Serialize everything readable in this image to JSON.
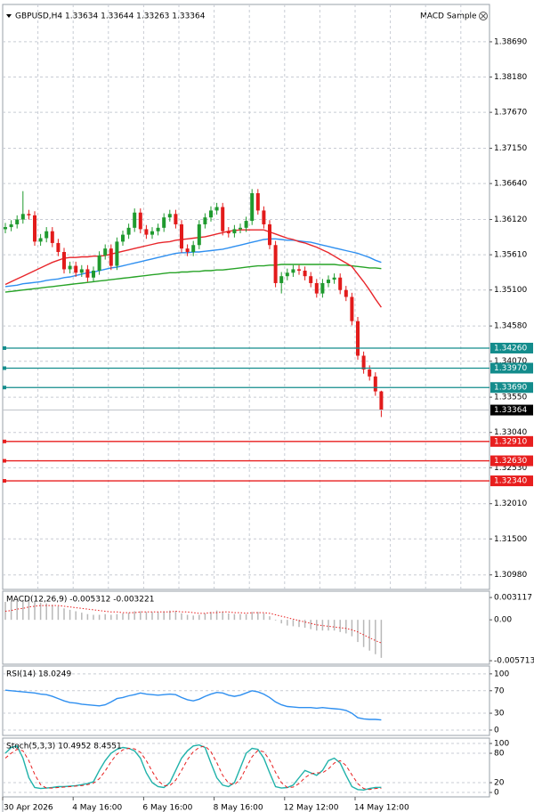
{
  "header": {
    "expert": "MACD Sample"
  },
  "chart_data": [
    {
      "type": "candlestick",
      "title": "GBPUSD,H4  1.33634 1.33644 1.33263 1.33364",
      "up_color": "#1f9a2e",
      "down_color": "#e21b1b",
      "grid": true,
      "ylim": [
        1.3077,
        1.3923
      ],
      "yticks": [
        {
          "value": 1.3869,
          "label": "1.38690"
        },
        {
          "value": 1.3818,
          "label": "1.38180"
        },
        {
          "value": 1.3767,
          "label": "1.37670"
        },
        {
          "value": 1.3715,
          "label": "1.37150"
        },
        {
          "value": 1.3664,
          "label": "1.36640"
        },
        {
          "value": 1.3612,
          "label": "1.36120"
        },
        {
          "value": 1.3561,
          "label": "1.35610"
        },
        {
          "value": 1.351,
          "label": "1.35100"
        },
        {
          "value": 1.3458,
          "label": "1.34580"
        },
        {
          "value": 1.3407,
          "label": "1.34070"
        },
        {
          "value": 1.3355,
          "label": "1.33550"
        },
        {
          "value": 1.3304,
          "label": "1.33040"
        },
        {
          "value": 1.3253,
          "label": "1.32530"
        },
        {
          "value": 1.3201,
          "label": "1.32010"
        },
        {
          "value": 1.315,
          "label": "1.31500"
        },
        {
          "value": 1.3098,
          "label": "1.30980"
        }
      ],
      "open": [
        1.3598,
        1.3601,
        1.3605,
        1.3612,
        1.362,
        1.3618,
        1.358,
        1.3585,
        1.3595,
        1.3578,
        1.3565,
        1.354,
        1.3545,
        1.3535,
        1.354,
        1.3528,
        1.3538,
        1.356,
        1.357,
        1.3545,
        1.358,
        1.359,
        1.36,
        1.3622,
        1.3598,
        1.359,
        1.3595,
        1.36,
        1.3615,
        1.362,
        1.3605,
        1.357,
        1.3565,
        1.3575,
        1.3605,
        1.3615,
        1.3625,
        1.363,
        1.3595,
        1.3592,
        1.3598,
        1.36,
        1.361,
        1.365,
        1.3625,
        1.3605,
        1.3575,
        1.352,
        1.353,
        1.3535,
        1.354,
        1.3538,
        1.353,
        1.352,
        1.3505,
        1.352,
        1.3525,
        1.3528,
        1.351,
        1.35,
        1.3465,
        1.3415,
        1.3395,
        1.3385,
        1.33634
      ],
      "high": [
        1.3607,
        1.3611,
        1.3618,
        1.3653,
        1.3626,
        1.3624,
        1.3591,
        1.3601,
        1.3601,
        1.3584,
        1.3571,
        1.3551,
        1.3551,
        1.3546,
        1.3546,
        1.3544,
        1.3566,
        1.3576,
        1.3576,
        1.3586,
        1.3596,
        1.3606,
        1.3628,
        1.3628,
        1.3604,
        1.3601,
        1.3606,
        1.3621,
        1.3626,
        1.3626,
        1.3611,
        1.3576,
        1.3581,
        1.3611,
        1.3621,
        1.3631,
        1.3636,
        1.3636,
        1.3601,
        1.3604,
        1.3606,
        1.3616,
        1.3656,
        1.3656,
        1.3631,
        1.3611,
        1.3581,
        1.3536,
        1.3541,
        1.3546,
        1.3546,
        1.3544,
        1.3536,
        1.3526,
        1.3526,
        1.3531,
        1.3534,
        1.3534,
        1.3516,
        1.3506,
        1.3471,
        1.3421,
        1.3401,
        1.3391,
        1.33644
      ],
      "low": [
        1.3592,
        1.3595,
        1.3599,
        1.3606,
        1.3612,
        1.3574,
        1.3574,
        1.3579,
        1.3572,
        1.3559,
        1.3534,
        1.3534,
        1.3529,
        1.3529,
        1.3522,
        1.3522,
        1.3532,
        1.3554,
        1.3539,
        1.3539,
        1.3574,
        1.3584,
        1.3594,
        1.3592,
        1.3584,
        1.3584,
        1.3589,
        1.3594,
        1.3609,
        1.3599,
        1.3564,
        1.3559,
        1.3559,
        1.3569,
        1.3599,
        1.3609,
        1.3619,
        1.3589,
        1.3586,
        1.3586,
        1.3592,
        1.3594,
        1.3604,
        1.3619,
        1.3599,
        1.3569,
        1.3514,
        1.3505,
        1.3524,
        1.3529,
        1.3532,
        1.3524,
        1.3514,
        1.3499,
        1.3499,
        1.3514,
        1.3519,
        1.3504,
        1.3494,
        1.3459,
        1.3409,
        1.3389,
        1.3379,
        1.3357,
        1.33263
      ],
      "close": [
        1.3601,
        1.3605,
        1.3612,
        1.362,
        1.3618,
        1.358,
        1.3585,
        1.3595,
        1.3578,
        1.3565,
        1.354,
        1.3545,
        1.3535,
        1.354,
        1.3528,
        1.3538,
        1.356,
        1.357,
        1.3545,
        1.358,
        1.359,
        1.36,
        1.3622,
        1.3598,
        1.359,
        1.3595,
        1.36,
        1.3615,
        1.362,
        1.3605,
        1.357,
        1.3565,
        1.3575,
        1.3605,
        1.3615,
        1.3625,
        1.363,
        1.3595,
        1.3592,
        1.3598,
        1.36,
        1.361,
        1.365,
        1.3625,
        1.3605,
        1.3575,
        1.352,
        1.353,
        1.3535,
        1.354,
        1.3538,
        1.353,
        1.352,
        1.3505,
        1.352,
        1.3525,
        1.3528,
        1.351,
        1.35,
        1.3465,
        1.3415,
        1.3395,
        1.3385,
        1.33634,
        1.33364
      ],
      "series": [
        {
          "color": "#27a327",
          "values": [
            1.3507,
            1.3508,
            1.3509,
            1.351,
            1.3511,
            1.3512,
            1.3513,
            1.3514,
            1.3515,
            1.3516,
            1.3517,
            1.3518,
            1.3519,
            1.352,
            1.3521,
            1.3522,
            1.3523,
            1.3524,
            1.3525,
            1.3526,
            1.3527,
            1.3528,
            1.3529,
            1.353,
            1.3531,
            1.3532,
            1.3533,
            1.3534,
            1.3535,
            1.3535,
            1.3536,
            1.3536,
            1.3537,
            1.3537,
            1.3538,
            1.3538,
            1.3539,
            1.3539,
            1.354,
            1.3541,
            1.3542,
            1.3543,
            1.3544,
            1.3545,
            1.3545,
            1.3546,
            1.3546,
            1.3547,
            1.3547,
            1.3547,
            1.3547,
            1.3547,
            1.3547,
            1.3547,
            1.3547,
            1.3547,
            1.3547,
            1.3546,
            1.3546,
            1.3545,
            1.3544,
            1.3543,
            1.3542,
            1.3542,
            1.3541
          ]
        },
        {
          "color": "#2e8ff0",
          "values": [
            1.3515,
            1.3516,
            1.3517,
            1.3519,
            1.352,
            1.3521,
            1.3522,
            1.3524,
            1.3525,
            1.3526,
            1.3528,
            1.3529,
            1.3531,
            1.3533,
            1.3535,
            1.3536,
            1.3538,
            1.354,
            1.3542,
            1.3543,
            1.3545,
            1.3547,
            1.3549,
            1.3551,
            1.3553,
            1.3555,
            1.3557,
            1.3559,
            1.3561,
            1.3563,
            1.3564,
            1.3564,
            1.3565,
            1.3565,
            1.3566,
            1.3567,
            1.3568,
            1.3569,
            1.3571,
            1.3573,
            1.3575,
            1.3577,
            1.3579,
            1.3581,
            1.3583,
            1.3584,
            1.3584,
            1.3583,
            1.3582,
            1.3582,
            1.3581,
            1.358,
            1.3579,
            1.3577,
            1.3575,
            1.3573,
            1.3571,
            1.3569,
            1.3567,
            1.3565,
            1.3563,
            1.356,
            1.3557,
            1.3553,
            1.355
          ]
        },
        {
          "color": "#e8262b",
          "values": [
            1.3518,
            1.3522,
            1.3526,
            1.353,
            1.3534,
            1.3538,
            1.3542,
            1.3546,
            1.355,
            1.3553,
            1.3556,
            1.3557,
            1.3557,
            1.3558,
            1.3558,
            1.3559,
            1.3559,
            1.356,
            1.3562,
            1.3564,
            1.3566,
            1.3568,
            1.357,
            1.3572,
            1.3574,
            1.3576,
            1.3578,
            1.3579,
            1.358,
            1.3582,
            1.3583,
            1.3584,
            1.3585,
            1.3586,
            1.3587,
            1.3589,
            1.3591,
            1.3593,
            1.3595,
            1.3596,
            1.3597,
            1.3597,
            1.3597,
            1.3597,
            1.3597,
            1.3594,
            1.3591,
            1.3588,
            1.3585,
            1.3583,
            1.358,
            1.3578,
            1.3575,
            1.3572,
            1.3568,
            1.3564,
            1.3559,
            1.3554,
            1.3549,
            1.3544,
            1.3533,
            1.3522,
            1.351,
            1.3497,
            1.3485
          ]
        }
      ],
      "levels": {
        "values": [
          1.3426,
          1.3397,
          1.3369,
          1.3291,
          1.3263,
          1.3234
        ],
        "value_labels": [
          "1.34260",
          "1.33970",
          "1.33690",
          "1.32910",
          "1.32630",
          "1.32340"
        ],
        "colors": [
          "#138c8c",
          "#138c8c",
          "#138c8c",
          "#e81e1e",
          "#e81e1e",
          "#e81e1e"
        ]
      },
      "current_price": {
        "value": 1.33364,
        "value_label": "1.33364",
        "color": "#000000"
      }
    },
    {
      "type": "macd",
      "title": "MACD(12,26,9) -0.005312 -0.003221",
      "grid": false,
      "ylim": [
        -0.0062,
        0.004
      ],
      "yticks": [
        0.003117,
        {
          "value": 0,
          "label": "0.00"
        },
        -0.005713
      ],
      "color": "#b8b8b8",
      "values": [
        0.0025,
        0.0026,
        0.0027,
        0.0028,
        0.0028,
        0.0026,
        0.0024,
        0.0023,
        0.0021,
        0.0019,
        0.0016,
        0.0014,
        0.0012,
        0.001,
        0.0008,
        0.0007,
        0.0007,
        0.0008,
        0.0007,
        0.0008,
        0.0009,
        0.001,
        0.0012,
        0.0012,
        0.0011,
        0.0011,
        0.0011,
        0.0012,
        0.0013,
        0.0012,
        0.0009,
        0.0007,
        0.0006,
        0.0007,
        0.0009,
        0.0011,
        0.0013,
        0.0011,
        0.0009,
        0.0008,
        0.0008,
        0.0008,
        0.0011,
        0.0011,
        0.0009,
        0.0005,
        -0.0001,
        -0.0005,
        -0.0008,
        -0.0009,
        -0.001,
        -0.0011,
        -0.0013,
        -0.0015,
        -0.0015,
        -0.0015,
        -0.0015,
        -0.0017,
        -0.0019,
        -0.0023,
        -0.0031,
        -0.0038,
        -0.0043,
        -0.0048,
        -0.005312
      ],
      "series": [
        {
          "color": "#e81e1e",
          "style": "dotted",
          "values": [
            0.0012,
            0.0013,
            0.0015,
            0.0016,
            0.0018,
            0.0019,
            0.002,
            0.002,
            0.002,
            0.002,
            0.0019,
            0.0018,
            0.0017,
            0.0016,
            0.0015,
            0.0014,
            0.0013,
            0.0012,
            0.0011,
            0.0011,
            0.001,
            0.001,
            0.001,
            0.0011,
            0.0011,
            0.0011,
            0.0011,
            0.0011,
            0.0011,
            0.0012,
            0.0011,
            0.0011,
            0.001,
            0.0009,
            0.0009,
            0.001,
            0.001,
            0.0011,
            0.0011,
            0.001,
            0.001,
            0.0009,
            0.001,
            0.001,
            0.001,
            0.0009,
            0.0007,
            0.0005,
            0.0003,
            0.0001,
            -0.0001,
            -0.0003,
            -0.0005,
            -0.0007,
            -0.0008,
            -0.0009,
            -0.001,
            -0.0011,
            -0.0012,
            -0.0014,
            -0.0017,
            -0.0021,
            -0.0025,
            -0.0029,
            -0.003221
          ]
        }
      ]
    },
    {
      "type": "line",
      "title": "RSI(14) 18.0249",
      "grid": true,
      "ylim": [
        -9.5,
        114
      ],
      "yticks": [
        100,
        70,
        30,
        0
      ],
      "series": [
        {
          "color": "#2e8ff0",
          "style": "solid",
          "values": [
            71,
            70,
            69,
            68,
            67,
            66,
            64,
            63,
            60,
            56,
            52,
            49,
            48,
            46,
            45,
            44,
            43,
            45,
            50,
            56,
            58,
            61,
            63,
            66,
            64,
            63,
            62,
            63,
            64,
            63,
            58,
            54,
            52,
            55,
            60,
            64,
            67,
            66,
            62,
            60,
            62,
            66,
            70,
            68,
            64,
            58,
            50,
            45,
            42,
            41,
            40,
            40,
            40,
            39,
            40,
            39,
            38,
            37,
            35,
            30,
            22,
            20,
            19,
            19,
            18.0249
          ]
        }
      ]
    },
    {
      "type": "line",
      "title": "Stoch(5,3,3) 10.4952 8.4551",
      "grid": true,
      "ylim": [
        -9,
        111
      ],
      "yticks": [
        100,
        80,
        20,
        0
      ],
      "series": [
        {
          "color": "#20b2aa",
          "style": "solid",
          "values": [
            80,
            92,
            95,
            70,
            30,
            10,
            8,
            9,
            10,
            12,
            12,
            13,
            14,
            16,
            18,
            22,
            45,
            65,
            80,
            88,
            92,
            90,
            85,
            70,
            40,
            20,
            12,
            10,
            20,
            45,
            70,
            85,
            95,
            97,
            92,
            60,
            30,
            15,
            12,
            20,
            50,
            80,
            90,
            88,
            70,
            40,
            12,
            9,
            10,
            15,
            30,
            45,
            40,
            35,
            45,
            65,
            70,
            60,
            35,
            12,
            6,
            5,
            8,
            10,
            10.4952
          ]
        },
        {
          "color": "#e81e1e",
          "style": "dashed",
          "values": [
            70,
            80,
            88,
            85,
            65,
            37,
            16,
            9,
            9,
            10,
            11,
            12,
            13,
            14,
            16,
            19,
            28,
            44,
            63,
            78,
            87,
            90,
            89,
            82,
            65,
            43,
            24,
            14,
            14,
            25,
            45,
            67,
            83,
            92,
            95,
            83,
            61,
            35,
            19,
            16,
            27,
            50,
            73,
            86,
            83,
            66,
            41,
            20,
            10,
            11,
            18,
            30,
            38,
            40,
            40,
            48,
            60,
            65,
            55,
            36,
            18,
            8,
            6,
            8,
            8.4551
          ]
        }
      ],
      "categories": [
        "30 Apr 2026",
        null,
        null,
        null,
        null,
        null,
        null,
        null,
        null,
        null,
        null,
        null,
        "4 May 16:00",
        null,
        null,
        null,
        null,
        null,
        null,
        null,
        null,
        null,
        null,
        null,
        "6 May 16:00",
        null,
        null,
        null,
        null,
        null,
        null,
        null,
        null,
        null,
        null,
        null,
        "8 May 16:00",
        null,
        null,
        null,
        null,
        null,
        null,
        null,
        null,
        null,
        null,
        null,
        "12 May 12:00",
        null,
        null,
        null,
        null,
        null,
        null,
        null,
        null,
        null,
        null,
        null,
        "14 May 12:00",
        null,
        null,
        null,
        null
      ]
    }
  ]
}
